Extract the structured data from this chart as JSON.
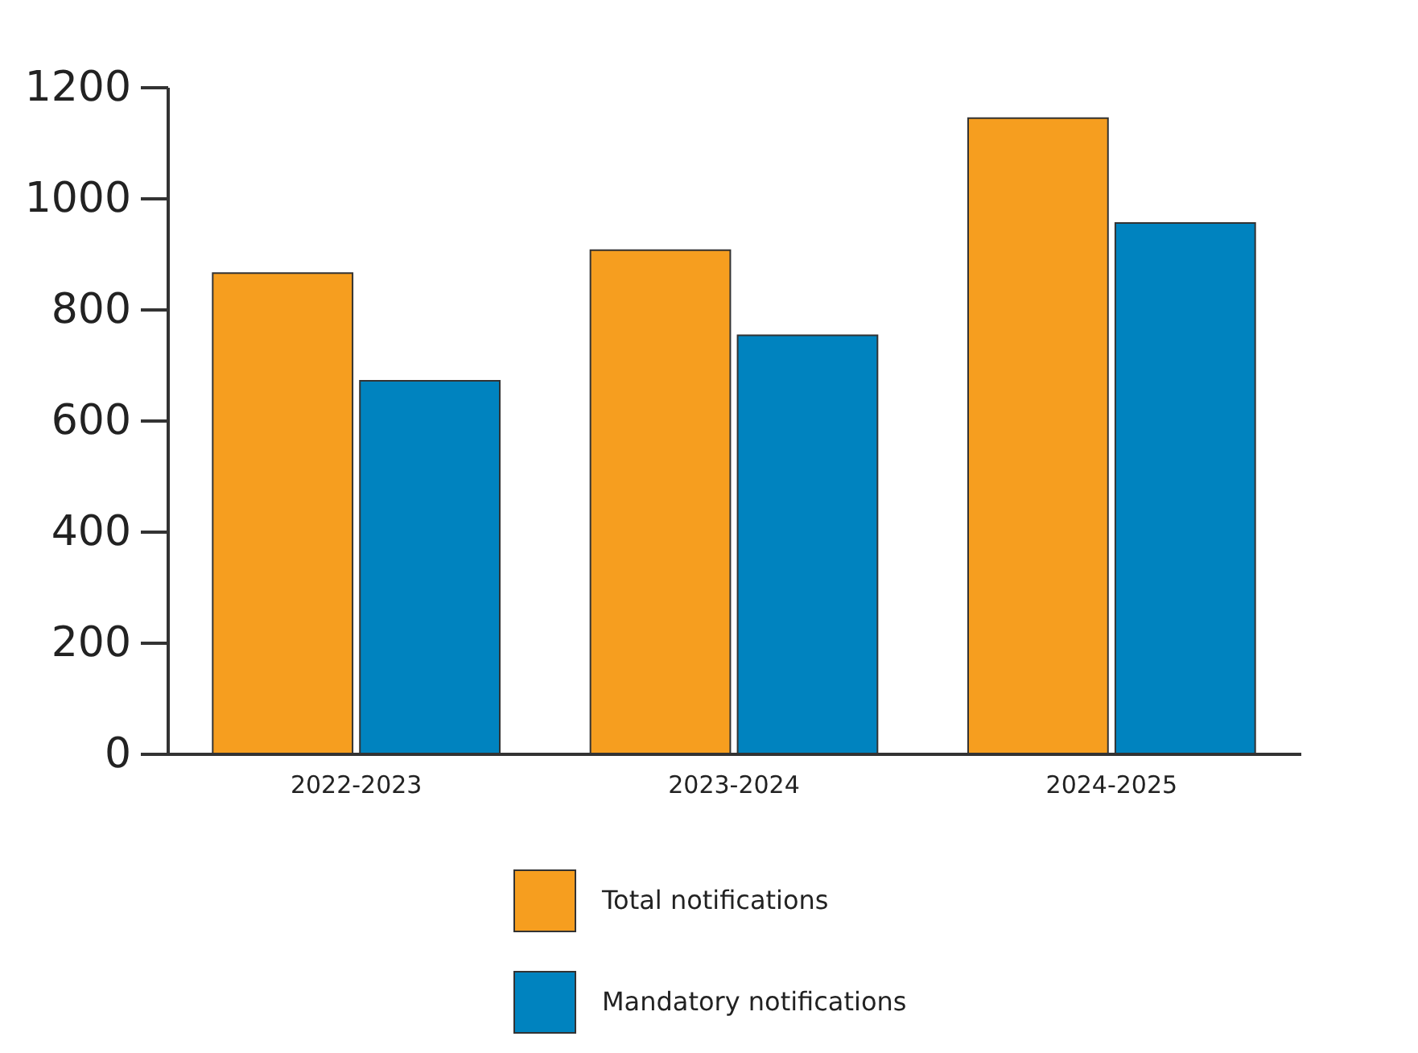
{
  "chart_data": {
    "type": "bar",
    "categories": [
      "2022-2023",
      "2023-2024",
      "2024-2025"
    ],
    "series": [
      {
        "name": "Total notifications",
        "color": "#f69e1f",
        "values": [
          865,
          906,
          1144
        ]
      },
      {
        "name": "Mandatory notifications",
        "color": "#0083bf",
        "values": [
          671,
          753,
          955
        ]
      }
    ],
    "ylim": [
      0,
      1200
    ],
    "yticks": [
      0,
      200,
      400,
      600,
      800,
      1000,
      1200
    ],
    "grid": false,
    "legend": "bottom"
  }
}
